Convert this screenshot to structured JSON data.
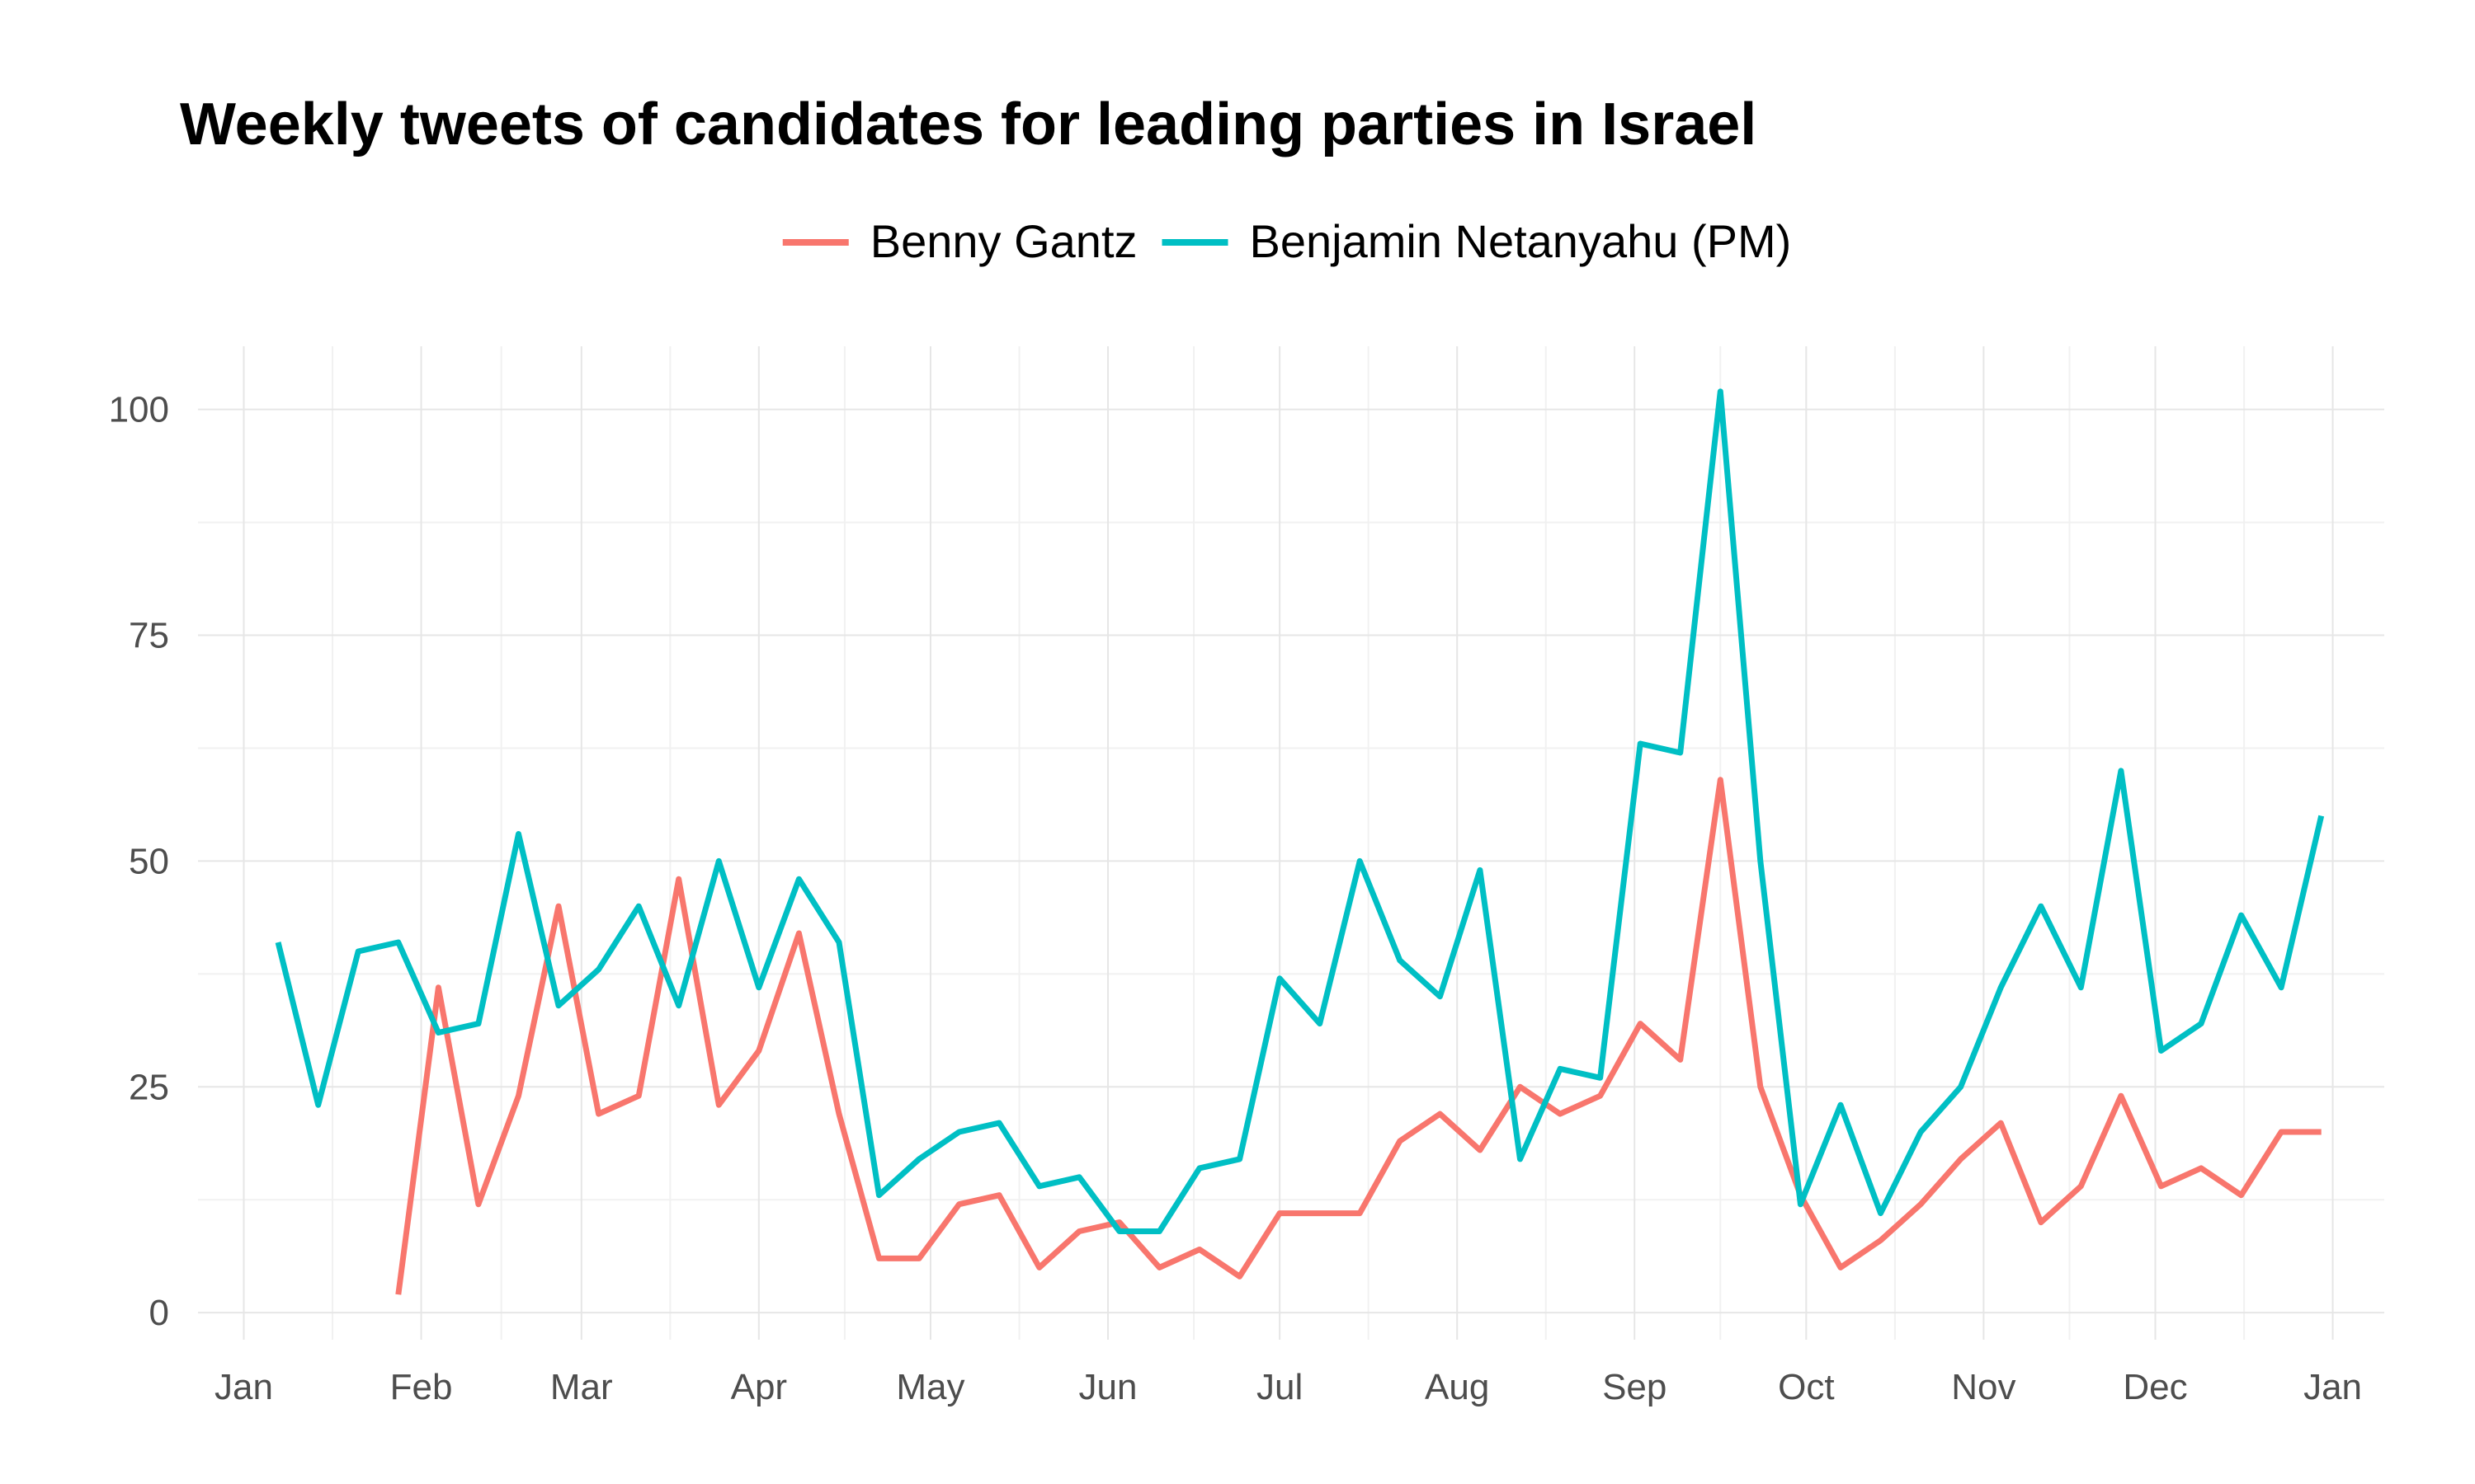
{
  "chart_data": {
    "type": "line",
    "title": "Weekly tweets of candidates for leading parties in Israel",
    "xlabel": "",
    "ylabel": "",
    "x_axis": {
      "kind": "date",
      "range": [
        "2018-12-24",
        "2020-01-10"
      ],
      "ticks": [
        {
          "date": "2019-01-01",
          "label": "Jan"
        },
        {
          "date": "2019-02-01",
          "label": "Feb"
        },
        {
          "date": "2019-03-01",
          "label": "Mar"
        },
        {
          "date": "2019-04-01",
          "label": "Apr"
        },
        {
          "date": "2019-05-01",
          "label": "May"
        },
        {
          "date": "2019-06-01",
          "label": "Jun"
        },
        {
          "date": "2019-07-01",
          "label": "Jul"
        },
        {
          "date": "2019-08-01",
          "label": "Aug"
        },
        {
          "date": "2019-09-01",
          "label": "Sep"
        },
        {
          "date": "2019-10-01",
          "label": "Oct"
        },
        {
          "date": "2019-11-01",
          "label": "Nov"
        },
        {
          "date": "2019-12-01",
          "label": "Dec"
        },
        {
          "date": "2020-01-01",
          "label": "Jan"
        }
      ]
    },
    "y_axis": {
      "ylim": [
        -3,
        107
      ],
      "ticks": [
        0,
        25,
        50,
        75,
        100
      ]
    },
    "grid": true,
    "legend": {
      "position": "top"
    },
    "series": [
      {
        "name": "Benny Gantz",
        "color": "#F8766D",
        "x": [
          "2019-01-28",
          "2019-02-04",
          "2019-02-11",
          "2019-02-18",
          "2019-02-25",
          "2019-03-04",
          "2019-03-11",
          "2019-03-18",
          "2019-03-25",
          "2019-04-01",
          "2019-04-08",
          "2019-04-15",
          "2019-04-22",
          "2019-04-29",
          "2019-05-06",
          "2019-05-13",
          "2019-05-20",
          "2019-05-27",
          "2019-06-03",
          "2019-06-10",
          "2019-06-17",
          "2019-06-24",
          "2019-07-01",
          "2019-07-08",
          "2019-07-15",
          "2019-07-22",
          "2019-07-29",
          "2019-08-05",
          "2019-08-12",
          "2019-08-19",
          "2019-08-26",
          "2019-09-02",
          "2019-09-09",
          "2019-09-16",
          "2019-09-23",
          "2019-09-30",
          "2019-10-07",
          "2019-10-14",
          "2019-10-21",
          "2019-10-28",
          "2019-11-04",
          "2019-11-11",
          "2019-11-18",
          "2019-11-25",
          "2019-12-02",
          "2019-12-09",
          "2019-12-16",
          "2019-12-23",
          "2019-12-30"
        ],
        "values": [
          2,
          36,
          12,
          24,
          45,
          22,
          24,
          48,
          23,
          29,
          42,
          22,
          6,
          6,
          12,
          13,
          5,
          9,
          10,
          5,
          7,
          4,
          11,
          11,
          11,
          19,
          22,
          18,
          25,
          22,
          24,
          32,
          28,
          59,
          25,
          13,
          5,
          8,
          12,
          17,
          21,
          10,
          14,
          24,
          14,
          16,
          13,
          20,
          20
        ]
      },
      {
        "name": "Benjamin Netanyahu (PM)",
        "color": "#00BFC4",
        "x": [
          "2019-01-07",
          "2019-01-14",
          "2019-01-21",
          "2019-01-28",
          "2019-02-04",
          "2019-02-11",
          "2019-02-18",
          "2019-02-25",
          "2019-03-04",
          "2019-03-11",
          "2019-03-18",
          "2019-03-25",
          "2019-04-01",
          "2019-04-08",
          "2019-04-15",
          "2019-04-22",
          "2019-04-29",
          "2019-05-06",
          "2019-05-13",
          "2019-05-20",
          "2019-05-27",
          "2019-06-03",
          "2019-06-10",
          "2019-06-17",
          "2019-06-24",
          "2019-07-01",
          "2019-07-08",
          "2019-07-15",
          "2019-07-22",
          "2019-07-29",
          "2019-08-05",
          "2019-08-12",
          "2019-08-19",
          "2019-08-26",
          "2019-09-02",
          "2019-09-09",
          "2019-09-16",
          "2019-09-23",
          "2019-09-30",
          "2019-10-07",
          "2019-10-14",
          "2019-10-21",
          "2019-10-28",
          "2019-11-04",
          "2019-11-11",
          "2019-11-18",
          "2019-11-25",
          "2019-12-02",
          "2019-12-09",
          "2019-12-16",
          "2019-12-23",
          "2019-12-30"
        ],
        "values": [
          41,
          23,
          40,
          41,
          31,
          32,
          53,
          34,
          38,
          45,
          34,
          50,
          36,
          48,
          41,
          13,
          17,
          20,
          21,
          14,
          15,
          9,
          9,
          16,
          17,
          37,
          32,
          50,
          39,
          35,
          49,
          17,
          27,
          26,
          63,
          62,
          102,
          50,
          12,
          23,
          11,
          20,
          25,
          36,
          45,
          36,
          60,
          29,
          32,
          44,
          36,
          55
        ]
      }
    ]
  }
}
